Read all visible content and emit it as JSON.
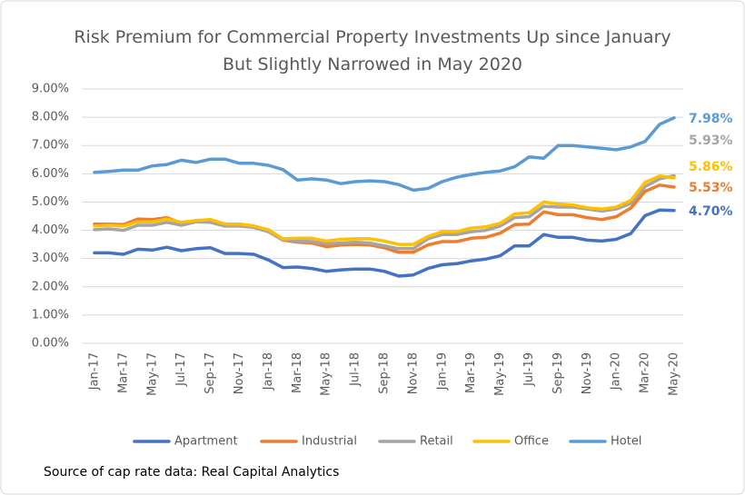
{
  "chart_data": {
    "type": "line",
    "title": "Risk Premium for Commercial Property Investments Up since January But Slightly Narrowed in May 2020",
    "note": "Source of cap rate data: Real Capital Analytics",
    "categories": [
      "Jan-17",
      null,
      "Mar-17",
      null,
      "May-17",
      null,
      "Jul-17",
      null,
      "Sep-17",
      null,
      "Nov-17",
      null,
      "Jan-18",
      null,
      "Mar-18",
      null,
      "May-18",
      null,
      "Jul-18",
      null,
      "Sep-18",
      null,
      "Nov-18",
      null,
      "Jan-19",
      null,
      "Mar-19",
      null,
      "May-19",
      null,
      "Jul-19",
      null,
      "Sep-19",
      null,
      "Nov-19",
      null,
      "Jan-20",
      null,
      "Mar-20",
      null,
      "May-20"
    ],
    "ylim": [
      0,
      9
    ],
    "yticks": [
      {
        "value": 0,
        "label": "0.00%"
      },
      {
        "value": 1,
        "label": "1.00%"
      },
      {
        "value": 2,
        "label": "2.00%"
      },
      {
        "value": 3,
        "label": "3.00%"
      },
      {
        "value": 4,
        "label": "4.00%"
      },
      {
        "value": 5,
        "label": "5.00%"
      },
      {
        "value": 6,
        "label": "6.00%"
      },
      {
        "value": 7,
        "label": "7.00%"
      },
      {
        "value": 8,
        "label": "8.00%"
      },
      {
        "value": 9,
        "label": "9.00%"
      }
    ],
    "grid": true,
    "legend": "bottom",
    "series": [
      {
        "name": "Apartment",
        "color": "#4472c4",
        "values": [
          3.2,
          3.2,
          3.15,
          3.33,
          3.3,
          3.4,
          3.28,
          3.35,
          3.38,
          3.18,
          3.18,
          3.15,
          2.95,
          2.68,
          2.7,
          2.65,
          2.55,
          2.6,
          2.63,
          2.63,
          2.55,
          2.38,
          2.42,
          2.65,
          2.78,
          2.82,
          2.92,
          2.98,
          3.1,
          3.45,
          3.45,
          3.85,
          3.75,
          3.75,
          3.65,
          3.62,
          3.68,
          3.88,
          4.52,
          4.72,
          4.7
        ],
        "value_labels": [
          null,
          null,
          null,
          null,
          null,
          null,
          null,
          null,
          null,
          null,
          null,
          null,
          null,
          null,
          null,
          null,
          null,
          null,
          null,
          null,
          null,
          null,
          null,
          null,
          null,
          null,
          null,
          null,
          null,
          null,
          null,
          null,
          null,
          null,
          null,
          null,
          null,
          null,
          null,
          null,
          "4.70%"
        ]
      },
      {
        "name": "Industrial",
        "color": "#ed7d31",
        "values": [
          4.22,
          4.22,
          4.2,
          4.4,
          4.38,
          4.45,
          4.25,
          4.35,
          4.35,
          4.22,
          4.22,
          4.15,
          4.0,
          3.65,
          3.58,
          3.55,
          3.42,
          3.48,
          3.5,
          3.48,
          3.38,
          3.22,
          3.22,
          3.48,
          3.6,
          3.6,
          3.72,
          3.75,
          3.9,
          4.2,
          4.22,
          4.65,
          4.55,
          4.55,
          4.45,
          4.38,
          4.48,
          4.78,
          5.38,
          5.6,
          5.53
        ],
        "value_labels": [
          null,
          null,
          null,
          null,
          null,
          null,
          null,
          null,
          null,
          null,
          null,
          null,
          null,
          null,
          null,
          null,
          null,
          null,
          null,
          null,
          null,
          null,
          null,
          null,
          null,
          null,
          null,
          null,
          null,
          null,
          null,
          null,
          null,
          null,
          null,
          null,
          null,
          null,
          null,
          null,
          "5.53%"
        ]
      },
      {
        "name": "Retail",
        "color": "#a5a5a5",
        "values": [
          4.02,
          4.05,
          4.0,
          4.18,
          4.18,
          4.28,
          4.18,
          4.3,
          4.28,
          4.15,
          4.15,
          4.1,
          3.95,
          3.65,
          3.62,
          3.6,
          3.52,
          3.55,
          3.58,
          3.55,
          3.45,
          3.35,
          3.35,
          3.7,
          3.85,
          3.85,
          3.95,
          4.0,
          4.15,
          4.45,
          4.48,
          4.85,
          4.82,
          4.82,
          4.75,
          4.68,
          4.75,
          4.95,
          5.55,
          5.82,
          5.93
        ],
        "value_labels": [
          null,
          null,
          null,
          null,
          null,
          null,
          null,
          null,
          null,
          null,
          null,
          null,
          null,
          null,
          null,
          null,
          null,
          null,
          null,
          null,
          null,
          null,
          null,
          null,
          null,
          null,
          null,
          null,
          null,
          null,
          null,
          null,
          null,
          null,
          null,
          null,
          null,
          null,
          null,
          null,
          "5.93%"
        ]
      },
      {
        "name": "Office",
        "color": "#ffc000",
        "values": [
          4.15,
          4.18,
          4.15,
          4.3,
          4.3,
          4.4,
          4.28,
          4.35,
          4.38,
          4.22,
          4.22,
          4.15,
          4.02,
          3.7,
          3.72,
          3.72,
          3.62,
          3.68,
          3.7,
          3.7,
          3.62,
          3.5,
          3.5,
          3.78,
          3.95,
          3.95,
          4.08,
          4.12,
          4.25,
          4.58,
          4.62,
          5.0,
          4.93,
          4.9,
          4.8,
          4.75,
          4.82,
          5.05,
          5.7,
          5.92,
          5.86
        ],
        "value_labels": [
          null,
          null,
          null,
          null,
          null,
          null,
          null,
          null,
          null,
          null,
          null,
          null,
          null,
          null,
          null,
          null,
          null,
          null,
          null,
          null,
          null,
          null,
          null,
          null,
          null,
          null,
          null,
          null,
          null,
          null,
          null,
          null,
          null,
          null,
          null,
          null,
          null,
          null,
          null,
          null,
          "5.86%"
        ]
      },
      {
        "name": "Hotel",
        "color": "#5b9bd5",
        "values": [
          6.05,
          6.08,
          6.13,
          6.13,
          6.28,
          6.33,
          6.48,
          6.4,
          6.52,
          6.52,
          6.37,
          6.37,
          6.3,
          6.15,
          5.78,
          5.82,
          5.78,
          5.65,
          5.72,
          5.75,
          5.72,
          5.62,
          5.42,
          5.48,
          5.72,
          5.88,
          5.98,
          6.05,
          6.1,
          6.25,
          6.6,
          6.55,
          7.0,
          7.0,
          6.95,
          6.9,
          6.85,
          6.95,
          7.15,
          7.75,
          7.98
        ],
        "value_labels": [
          null,
          null,
          null,
          null,
          null,
          null,
          null,
          null,
          null,
          null,
          null,
          null,
          null,
          null,
          null,
          null,
          null,
          null,
          null,
          null,
          null,
          null,
          null,
          null,
          null,
          null,
          null,
          null,
          null,
          null,
          null,
          null,
          null,
          null,
          null,
          null,
          null,
          null,
          null,
          null,
          "7.98%"
        ]
      }
    ]
  }
}
